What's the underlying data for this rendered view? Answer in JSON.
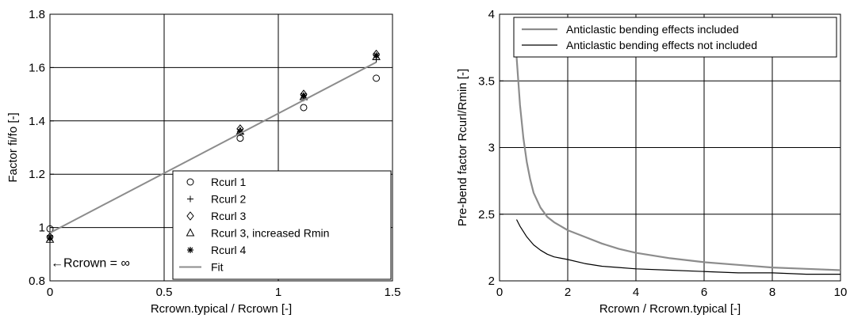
{
  "chart_data": [
    {
      "type": "scatter",
      "title": "",
      "xlabel": "Rcrown.typical / Rcrown [-]",
      "ylabel": "Factor fi/fo [-]",
      "xlim": [
        0,
        1.5
      ],
      "ylim": [
        0.8,
        1.8
      ],
      "xticks": [
        "0",
        "0.5",
        "1",
        "1.5"
      ],
      "yticks": [
        "0.8",
        "1",
        "1.2",
        "1.4",
        "1.6",
        "1.8"
      ],
      "grid": true,
      "legend_position": "bottom-right",
      "series": [
        {
          "name": "Rcurl 1",
          "marker": "circle",
          "x": [
            0,
            0.833,
            1.111,
            1.429
          ],
          "y": [
            0.995,
            1.335,
            1.45,
            1.56
          ]
        },
        {
          "name": "Rcurl 2",
          "marker": "plus",
          "x": [
            0,
            0.833,
            1.111,
            1.429
          ],
          "y": [
            0.97,
            1.355,
            1.485,
            1.63
          ]
        },
        {
          "name": "Rcurl 3",
          "marker": "diamond",
          "x": [
            0,
            0.833,
            1.111,
            1.429
          ],
          "y": [
            0.965,
            1.37,
            1.5,
            1.65
          ]
        },
        {
          "name": "Rcurl 3, increased Rmin",
          "marker": "triangle",
          "x": [
            0,
            0.833,
            1.111,
            1.429
          ],
          "y": [
            0.955,
            1.36,
            1.49,
            1.64
          ]
        },
        {
          "name": "Rcurl 4",
          "marker": "asterisk",
          "x": [
            0,
            0.833,
            1.111,
            1.429
          ],
          "y": [
            0.96,
            1.36,
            1.495,
            1.645
          ]
        },
        {
          "name": "Fit",
          "marker": "line",
          "x": [
            0,
            1.429
          ],
          "y": [
            0.98,
            1.62
          ]
        }
      ],
      "annotations": [
        {
          "text": "←Rcrown = ∞",
          "x": 0,
          "y": 0.87
        }
      ]
    },
    {
      "type": "line",
      "title": "",
      "xlabel": "Rcrown / Rcrown.typical [-]",
      "ylabel": "Pre-bend factor Rcurl/Rmin [-]",
      "xlim": [
        0,
        10
      ],
      "ylim": [
        2,
        4
      ],
      "xticks": [
        "0",
        "2",
        "4",
        "6",
        "8",
        "10"
      ],
      "yticks": [
        "2",
        "2.5",
        "3",
        "3.5",
        "4"
      ],
      "grid": true,
      "legend_position": "top-right",
      "series": [
        {
          "name": "Anticlastic bending effects included",
          "x": [
            0.5,
            0.6,
            0.7,
            0.8,
            0.9,
            1.0,
            1.2,
            1.4,
            1.6,
            1.8,
            2.0,
            2.5,
            3.0,
            3.5,
            4.0,
            5.0,
            6.0,
            7.0,
            8.0,
            9.0,
            10.0
          ],
          "y": [
            3.68,
            3.32,
            3.07,
            2.89,
            2.76,
            2.66,
            2.55,
            2.48,
            2.44,
            2.41,
            2.38,
            2.33,
            2.28,
            2.24,
            2.21,
            2.17,
            2.14,
            2.12,
            2.1,
            2.09,
            2.08
          ]
        },
        {
          "name": "Anticlastic bending effects not included",
          "x": [
            0.5,
            0.6,
            0.7,
            0.8,
            0.9,
            1.0,
            1.2,
            1.4,
            1.6,
            1.8,
            2.0,
            2.5,
            3.0,
            3.5,
            4.0,
            5.0,
            6.0,
            7.0,
            8.0,
            9.0,
            10.0
          ],
          "y": [
            2.46,
            2.41,
            2.37,
            2.33,
            2.3,
            2.27,
            2.23,
            2.2,
            2.18,
            2.17,
            2.16,
            2.13,
            2.11,
            2.1,
            2.09,
            2.08,
            2.07,
            2.06,
            2.06,
            2.05,
            2.05
          ]
        }
      ]
    }
  ]
}
